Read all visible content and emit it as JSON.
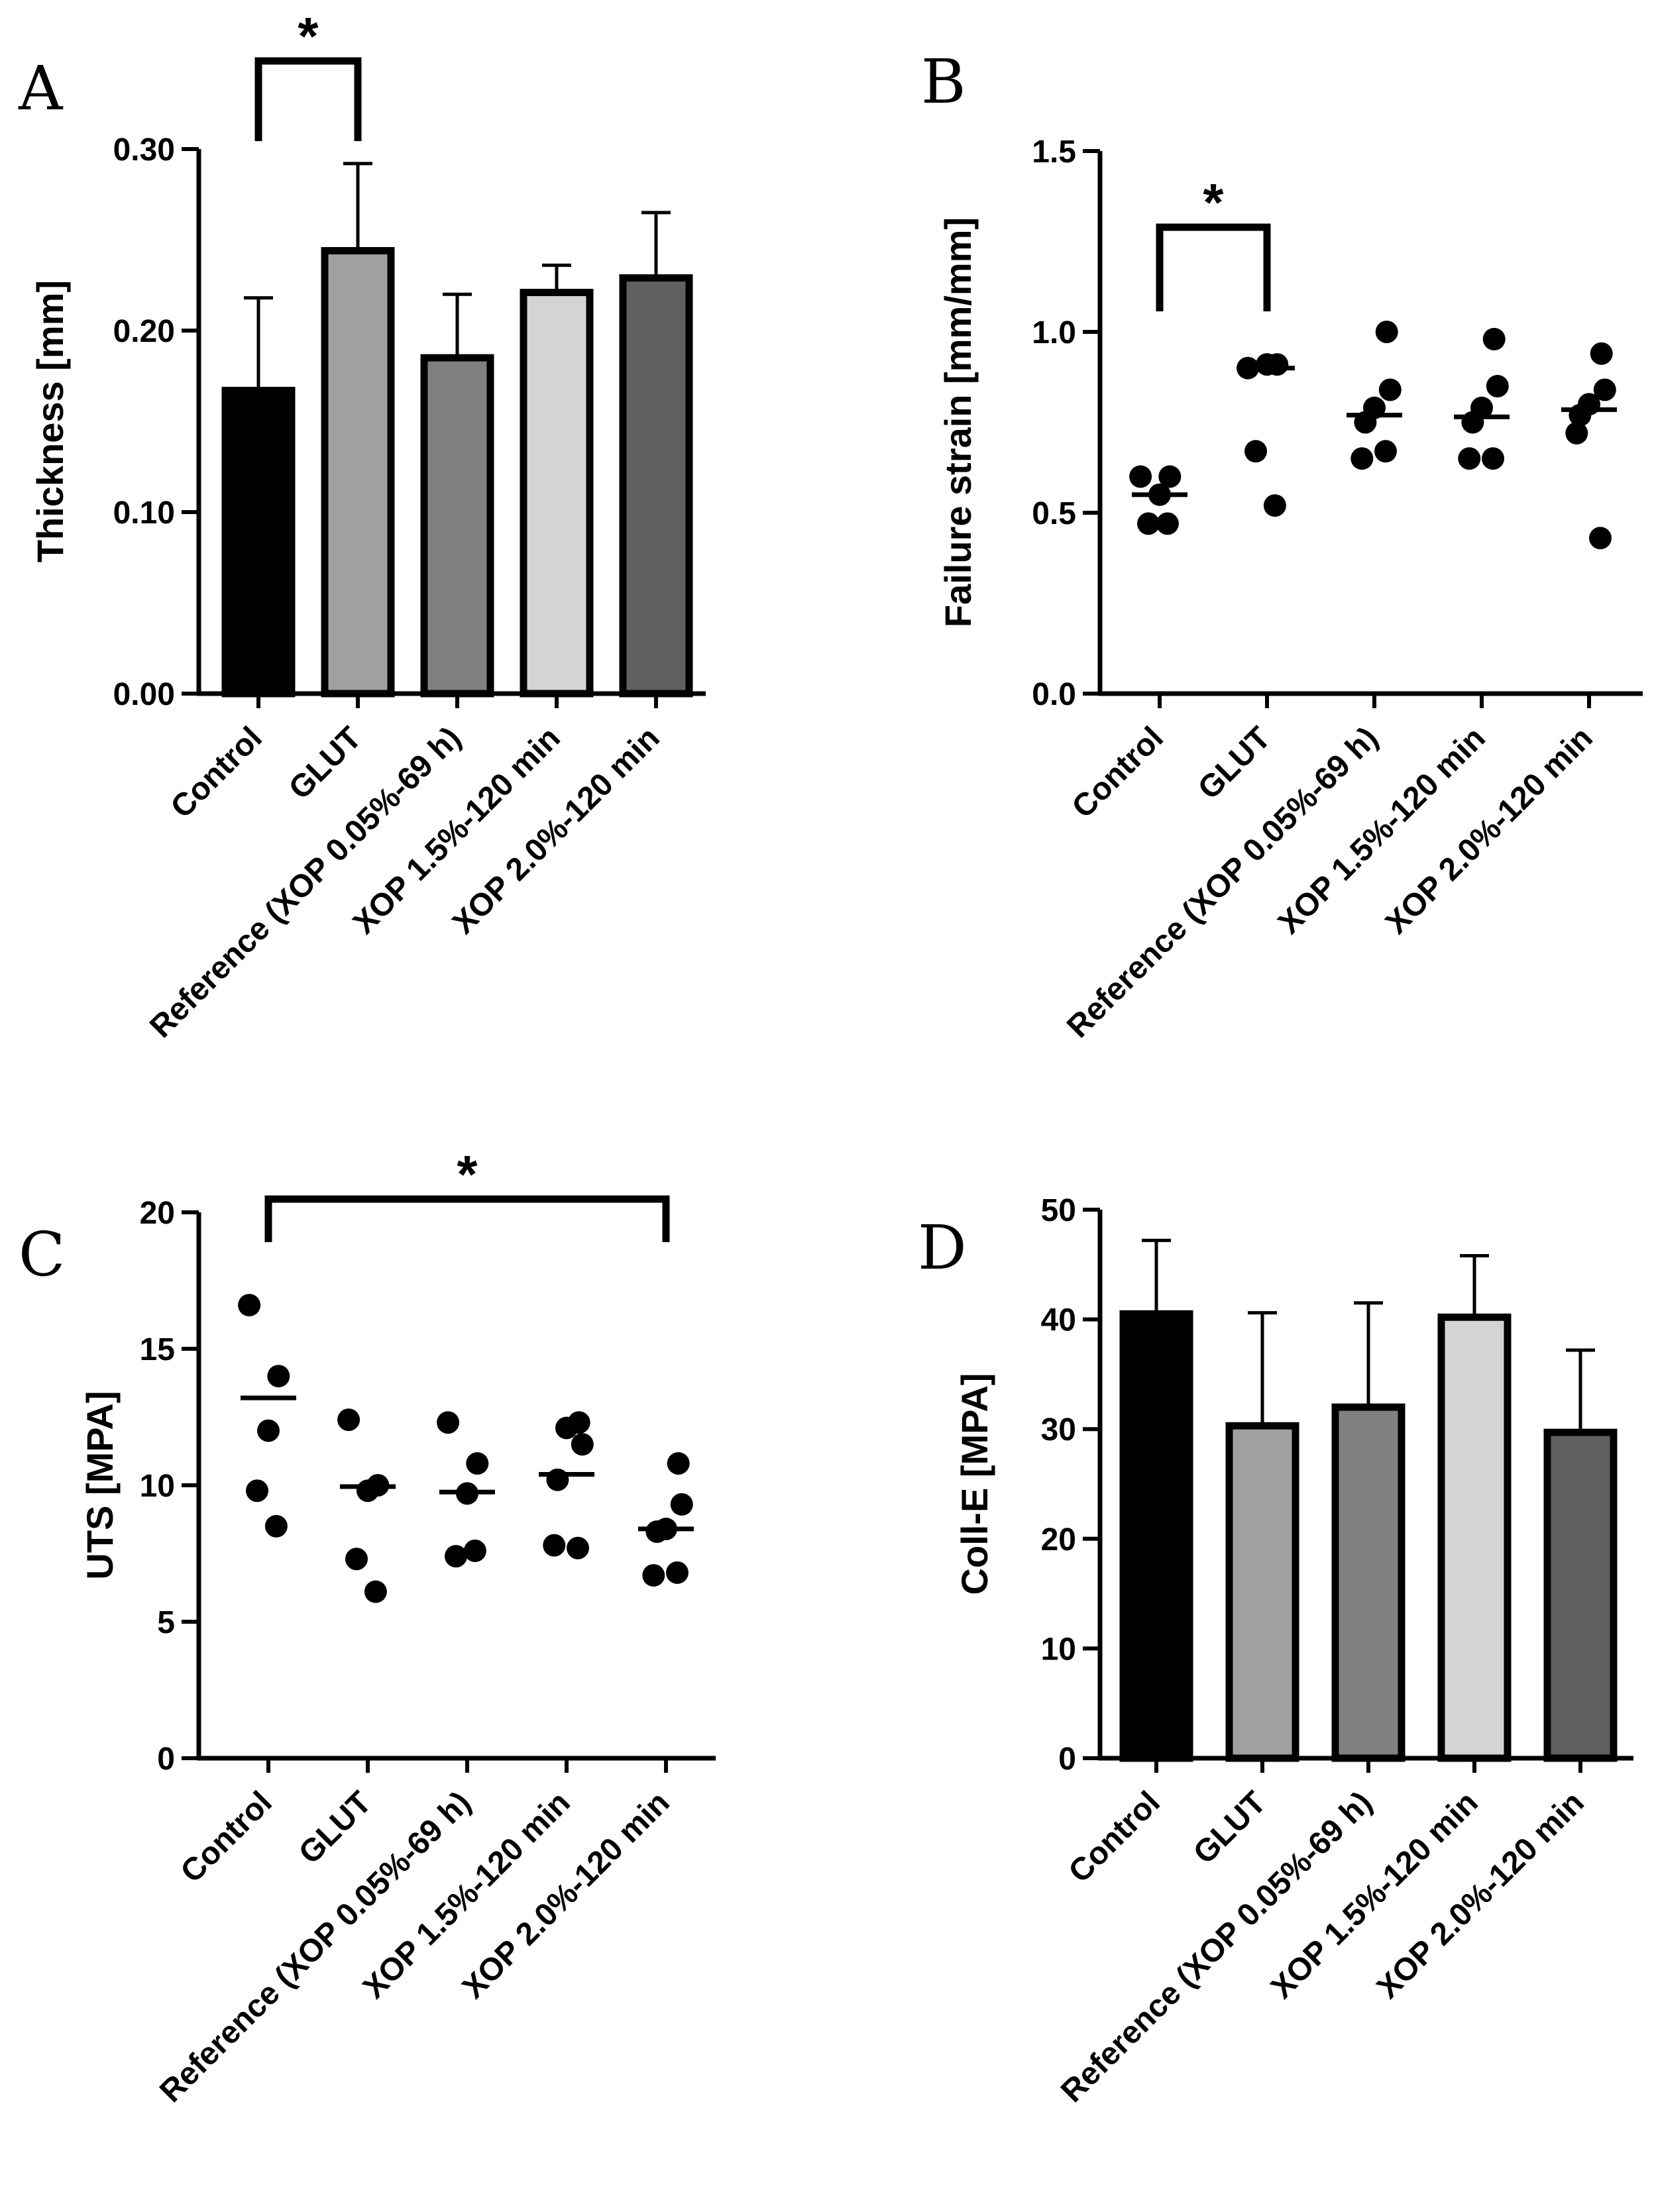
{
  "chart_data": [
    {
      "panel": "A",
      "type": "bar",
      "categories": [
        "Control",
        "GLUT",
        "Reference (XOP 0.05%-69 h)",
        "XOP 1.5%-120 min",
        "XOP 2.0%-120 min"
      ],
      "values": [
        0.167,
        0.244,
        0.185,
        0.221,
        0.229
      ],
      "errors": [
        0.051,
        0.048,
        0.035,
        0.015,
        0.036
      ],
      "colors": [
        "#000000",
        "#a0a0a0",
        "#808080",
        "#d4d4d4",
        "#606060"
      ],
      "ylabel": "Thickness [mm]",
      "ylim": [
        0,
        0.3
      ],
      "yticks": [
        0.0,
        0.1,
        0.2,
        0.3
      ],
      "ytick_labels": [
        "0.00",
        "0.10",
        "0.20",
        "0.30"
      ],
      "significance": [
        {
          "from": 0,
          "to": 1,
          "label": "*"
        }
      ]
    },
    {
      "panel": "B",
      "type": "scatter",
      "categories": [
        "Control",
        "GLUT",
        "Reference (XOP 0.05%-69 h)",
        "XOP 1.5%-120 min",
        "XOP 2.0%-120 min"
      ],
      "points": [
        [
          0.6,
          0.6,
          0.55,
          0.47,
          0.47
        ],
        [
          0.9,
          0.91,
          0.91,
          0.67,
          0.52
        ],
        [
          1.0,
          0.84,
          0.79,
          0.75,
          0.65,
          0.67
        ],
        [
          0.98,
          0.85,
          0.79,
          0.75,
          0.65,
          0.65
        ],
        [
          0.94,
          0.84,
          0.8,
          0.77,
          0.72,
          0.43
        ]
      ],
      "medians": [
        0.55,
        0.9,
        0.77,
        0.765,
        0.785
      ],
      "ylabel": "Failure strain [mm/mm]",
      "ylim": [
        0,
        1.5
      ],
      "yticks": [
        0.0,
        0.5,
        1.0,
        1.5
      ],
      "ytick_labels": [
        "0.0",
        "0.5",
        "1.0",
        "1.5"
      ],
      "significance": [
        {
          "from": 0,
          "to": 1,
          "label": "*"
        }
      ]
    },
    {
      "panel": "C",
      "type": "scatter",
      "categories": [
        "Control",
        "GLUT",
        "Reference (XOP 0.05%-69 h)",
        "XOP 1.5%-120 min",
        "XOP 2.0%-120 min"
      ],
      "points": [
        [
          16.6,
          14.0,
          12.0,
          9.8,
          8.5
        ],
        [
          12.4,
          10.0,
          9.8,
          7.3,
          6.1
        ],
        [
          12.3,
          10.8,
          9.7,
          7.4,
          7.6
        ],
        [
          12.3,
          11.5,
          12.1,
          10.2,
          7.8,
          7.7
        ],
        [
          10.8,
          9.3,
          8.4,
          8.3,
          6.7,
          6.8
        ]
      ],
      "medians": [
        13.2,
        9.95,
        9.75,
        10.4,
        8.4
      ],
      "ylabel": "UTS [MPA]",
      "ylim": [
        0,
        20
      ],
      "yticks": [
        0,
        5,
        10,
        15,
        20
      ],
      "ytick_labels": [
        "0",
        "5",
        "10",
        "15",
        "20"
      ],
      "significance": [
        {
          "from": 0,
          "to": 4,
          "label": "*"
        }
      ]
    },
    {
      "panel": "D",
      "type": "bar",
      "categories": [
        "Control",
        "GLUT",
        "Reference (XOP 0.05%-69 h)",
        "XOP 1.5%-120 min",
        "XOP 2.0%-120 min"
      ],
      "values": [
        40.5,
        30.3,
        32.0,
        40.2,
        29.7
      ],
      "errors": [
        6.7,
        10.3,
        9.5,
        5.6,
        7.5
      ],
      "colors": [
        "#000000",
        "#a0a0a0",
        "#808080",
        "#d4d4d4",
        "#606060"
      ],
      "ylabel": "Coll-E [MPA]",
      "ylim": [
        0,
        50
      ],
      "yticks": [
        0,
        10,
        20,
        30,
        40,
        50
      ],
      "ytick_labels": [
        "0",
        "10",
        "20",
        "30",
        "40",
        "50"
      ],
      "significance": []
    }
  ]
}
